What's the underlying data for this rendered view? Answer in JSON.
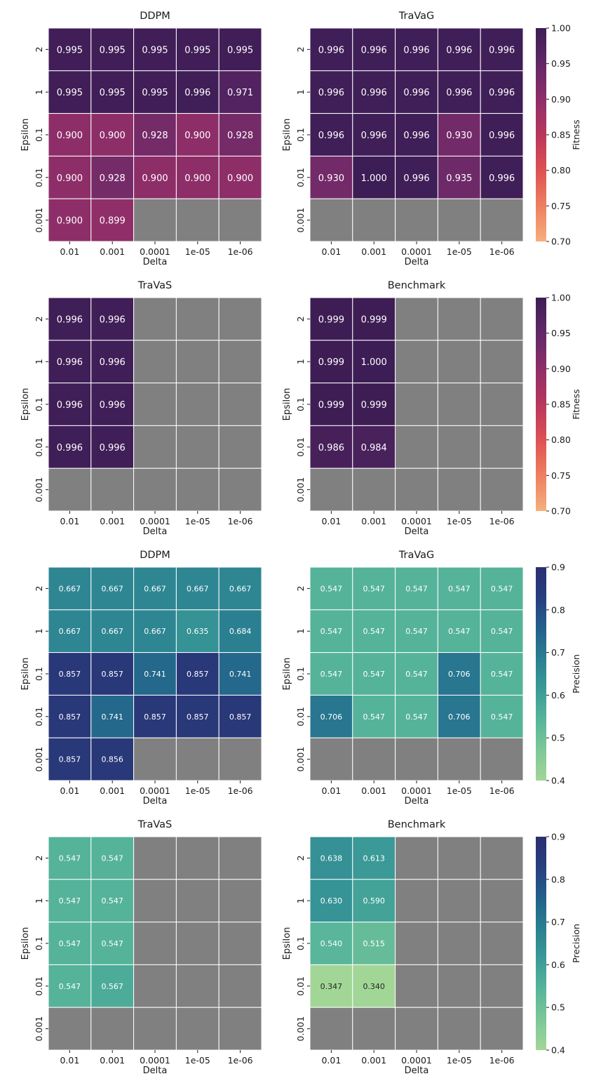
{
  "chart_data": [
    {
      "type": "heatmap",
      "metric": "fitness",
      "title": "DDPM",
      "xlabel": "Delta",
      "ylabel": "Epsilon",
      "x_tick_labels": [
        "0.01",
        "0.001",
        "0.0001",
        "1e-05",
        "1e-06"
      ],
      "y_tick_labels": [
        "2",
        "1",
        "0.1",
        "0.01",
        "0.001"
      ],
      "values": [
        [
          0.995,
          0.995,
          0.995,
          0.995,
          0.995
        ],
        [
          0.995,
          0.995,
          0.995,
          0.996,
          0.971
        ],
        [
          0.9,
          0.9,
          0.928,
          0.9,
          0.928
        ],
        [
          0.9,
          0.928,
          0.9,
          0.9,
          0.9
        ],
        [
          0.9,
          0.899,
          null,
          null,
          null
        ]
      ]
    },
    {
      "type": "heatmap",
      "metric": "fitness",
      "title": "TraVaG",
      "xlabel": "Delta",
      "ylabel": "Epsilon",
      "x_tick_labels": [
        "0.01",
        "0.001",
        "0.0001",
        "1e-05",
        "1e-06"
      ],
      "y_tick_labels": [
        "2",
        "1",
        "0.1",
        "0.01",
        "0.001"
      ],
      "values": [
        [
          0.996,
          0.996,
          0.996,
          0.996,
          0.996
        ],
        [
          0.996,
          0.996,
          0.996,
          0.996,
          0.996
        ],
        [
          0.996,
          0.996,
          0.996,
          0.93,
          0.996
        ],
        [
          0.93,
          1.0,
          0.996,
          0.935,
          0.996
        ],
        [
          null,
          null,
          null,
          null,
          null
        ]
      ]
    },
    {
      "type": "heatmap",
      "metric": "fitness",
      "title": "TraVaS",
      "xlabel": "Delta",
      "ylabel": "Epsilon",
      "x_tick_labels": [
        "0.01",
        "0.001",
        "0.0001",
        "1e-05",
        "1e-06"
      ],
      "y_tick_labels": [
        "2",
        "1",
        "0.1",
        "0.01",
        "0.001"
      ],
      "values": [
        [
          0.996,
          0.996,
          null,
          null,
          null
        ],
        [
          0.996,
          0.996,
          null,
          null,
          null
        ],
        [
          0.996,
          0.996,
          null,
          null,
          null
        ],
        [
          0.996,
          0.996,
          null,
          null,
          null
        ],
        [
          null,
          null,
          null,
          null,
          null
        ]
      ]
    },
    {
      "type": "heatmap",
      "metric": "fitness",
      "title": "Benchmark",
      "xlabel": "Delta",
      "ylabel": "Epsilon",
      "x_tick_labels": [
        "0.01",
        "0.001",
        "0.0001",
        "1e-05",
        "1e-06"
      ],
      "y_tick_labels": [
        "2",
        "1",
        "0.1",
        "0.01",
        "0.001"
      ],
      "values": [
        [
          0.999,
          0.999,
          null,
          null,
          null
        ],
        [
          0.999,
          1.0,
          null,
          null,
          null
        ],
        [
          0.999,
          0.999,
          null,
          null,
          null
        ],
        [
          0.986,
          0.984,
          null,
          null,
          null
        ],
        [
          null,
          null,
          null,
          null,
          null
        ]
      ]
    },
    {
      "type": "heatmap",
      "metric": "precision",
      "title": "DDPM",
      "xlabel": "Delta",
      "ylabel": "Epsilon",
      "x_tick_labels": [
        "0.01",
        "0.001",
        "0.0001",
        "1e-05",
        "1e-06"
      ],
      "y_tick_labels": [
        "2",
        "1",
        "0.1",
        "0.01",
        "0.001"
      ],
      "values": [
        [
          0.667,
          0.667,
          0.667,
          0.667,
          0.667
        ],
        [
          0.667,
          0.667,
          0.667,
          0.635,
          0.684
        ],
        [
          0.857,
          0.857,
          0.741,
          0.857,
          0.741
        ],
        [
          0.857,
          0.741,
          0.857,
          0.857,
          0.857
        ],
        [
          0.857,
          0.856,
          null,
          null,
          null
        ]
      ]
    },
    {
      "type": "heatmap",
      "metric": "precision",
      "title": "TraVaG",
      "xlabel": "Delta",
      "ylabel": "Epsilon",
      "x_tick_labels": [
        "0.01",
        "0.001",
        "0.0001",
        "1e-05",
        "1e-06"
      ],
      "y_tick_labels": [
        "2",
        "1",
        "0.1",
        "0.01",
        "0.001"
      ],
      "values": [
        [
          0.547,
          0.547,
          0.547,
          0.547,
          0.547
        ],
        [
          0.547,
          0.547,
          0.547,
          0.547,
          0.547
        ],
        [
          0.547,
          0.547,
          0.547,
          0.706,
          0.547
        ],
        [
          0.706,
          0.547,
          0.547,
          0.706,
          0.547
        ],
        [
          null,
          null,
          null,
          null,
          null
        ]
      ]
    },
    {
      "type": "heatmap",
      "metric": "precision",
      "title": "TraVaS",
      "xlabel": "Delta",
      "ylabel": "Epsilon",
      "x_tick_labels": [
        "0.01",
        "0.001",
        "0.0001",
        "1e-05",
        "1e-06"
      ],
      "y_tick_labels": [
        "2",
        "1",
        "0.1",
        "0.01",
        "0.001"
      ],
      "values": [
        [
          0.547,
          0.547,
          null,
          null,
          null
        ],
        [
          0.547,
          0.547,
          null,
          null,
          null
        ],
        [
          0.547,
          0.547,
          null,
          null,
          null
        ],
        [
          0.547,
          0.567,
          null,
          null,
          null
        ],
        [
          null,
          null,
          null,
          null,
          null
        ]
      ]
    },
    {
      "type": "heatmap",
      "metric": "precision",
      "title": "Benchmark",
      "xlabel": "Delta",
      "ylabel": "Epsilon",
      "x_tick_labels": [
        "0.01",
        "0.001",
        "0.0001",
        "1e-05",
        "1e-06"
      ],
      "y_tick_labels": [
        "2",
        "1",
        "0.1",
        "0.01",
        "0.001"
      ],
      "values": [
        [
          0.638,
          0.613,
          null,
          null,
          null
        ],
        [
          0.63,
          0.59,
          null,
          null,
          null
        ],
        [
          0.54,
          0.515,
          null,
          null,
          null
        ],
        [
          0.347,
          0.34,
          null,
          null,
          null
        ],
        [
          null,
          null,
          null,
          null,
          null
        ]
      ]
    }
  ],
  "colorbars": [
    {
      "label": "Fitness",
      "range": [
        0.7,
        1.0
      ],
      "tick_labels": [
        "1.00",
        "0.95",
        "0.90",
        "0.85",
        "0.80",
        "0.75",
        "0.70"
      ]
    },
    {
      "label": "Fitness",
      "range": [
        0.7,
        1.0
      ],
      "tick_labels": [
        "1.00",
        "0.95",
        "0.90",
        "0.85",
        "0.80",
        "0.75",
        "0.70"
      ]
    },
    {
      "label": "Precision",
      "range": [
        0.4,
        0.9
      ],
      "tick_labels": [
        "0.9",
        "0.8",
        "0.7",
        "0.6",
        "0.5",
        "0.4"
      ]
    },
    {
      "label": "Precision",
      "range": [
        0.4,
        0.9
      ],
      "tick_labels": [
        "0.9",
        "0.8",
        "0.7",
        "0.6",
        "0.5",
        "0.4"
      ]
    }
  ],
  "colors": {
    "missing_cell": "#808080",
    "cell_border": "#ffffff",
    "fitness_scale": [
      "#f4b07e",
      "#ee7f61",
      "#de5152",
      "#b8375d",
      "#8e2e69",
      "#612868",
      "#3d1d55"
    ],
    "precision_scale": [
      "#a2d697",
      "#7dc797",
      "#57b59a",
      "#3a9a97",
      "#2a7f91",
      "#22618a",
      "#283e80",
      "#2a2f6f"
    ]
  }
}
